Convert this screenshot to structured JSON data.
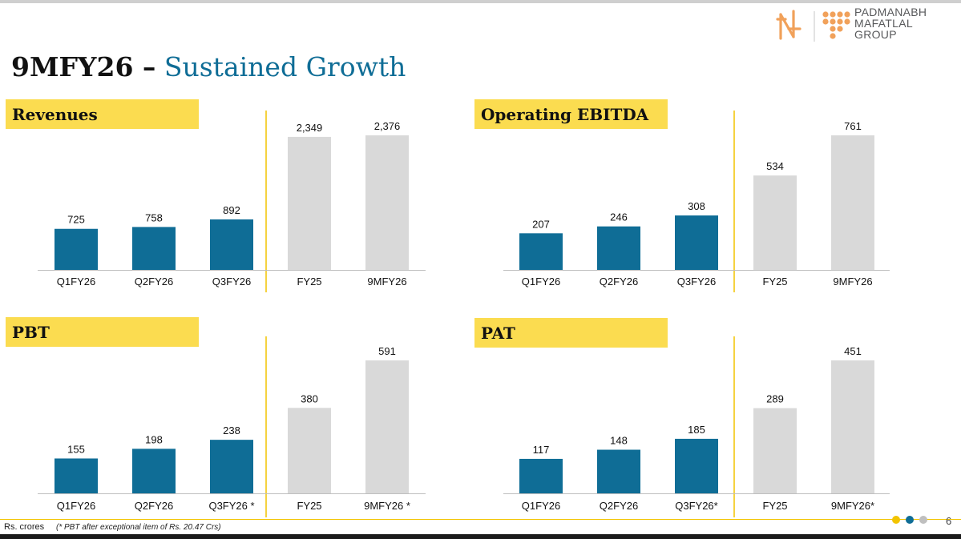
{
  "header": {
    "title_bold": "9MFY26 –",
    "title_rest": "Sustained Growth",
    "brand_lines": [
      "PADMANABH",
      "MAFATLAL",
      "GROUP"
    ]
  },
  "colors": {
    "bar_quarter": "#0f6d96",
    "bar_period": "#d9d9d9",
    "title_highlight": "#fbdc50",
    "divider": "#f2c400",
    "dot_1": "#f2c400",
    "dot_2": "#0f6d96",
    "dot_3": "#bfbfbf"
  },
  "footer": {
    "unit": "Rs. crores",
    "note": "(* PBT after exceptional item of Rs. 20.47 Crs)",
    "page": "6"
  },
  "chart_data": [
    {
      "type": "bar",
      "title": "Revenues",
      "categories": [
        "Q1FY26",
        "Q2FY26",
        "Q3FY26",
        "FY25",
        "9MFY26"
      ],
      "values": [
        725,
        758,
        892,
        2349,
        2376
      ],
      "value_labels": [
        "725",
        "758",
        "892",
        "2,349",
        "2,376"
      ],
      "groups": [
        "quarter",
        "quarter",
        "quarter",
        "period",
        "period"
      ],
      "ylim": [
        0,
        2376
      ]
    },
    {
      "type": "bar",
      "title": "Operating EBITDA",
      "categories": [
        "Q1FY26",
        "Q2FY26",
        "Q3FY26",
        "FY25",
        "9MFY26"
      ],
      "values": [
        207,
        246,
        308,
        534,
        761
      ],
      "value_labels": [
        "207",
        "246",
        "308",
        "534",
        "761"
      ],
      "groups": [
        "quarter",
        "quarter",
        "quarter",
        "period",
        "period"
      ],
      "ylim": [
        0,
        761
      ]
    },
    {
      "type": "bar",
      "title": "PBT",
      "categories": [
        "Q1FY26",
        "Q2FY26",
        "Q3FY26 *",
        "FY25",
        "9MFY26 *"
      ],
      "values": [
        155,
        198,
        238,
        380,
        591
      ],
      "value_labels": [
        "155",
        "198",
        "238",
        "380",
        "591"
      ],
      "groups": [
        "quarter",
        "quarter",
        "quarter",
        "period",
        "period"
      ],
      "ylim": [
        0,
        591
      ]
    },
    {
      "type": "bar",
      "title": "PAT",
      "categories": [
        "Q1FY26",
        "Q2FY26",
        "Q3FY26*",
        "FY25",
        "9MFY26*"
      ],
      "values": [
        117,
        148,
        185,
        289,
        451
      ],
      "value_labels": [
        "117",
        "148",
        "185",
        "289",
        "451"
      ],
      "groups": [
        "quarter",
        "quarter",
        "quarter",
        "period",
        "period"
      ],
      "ylim": [
        0,
        451
      ]
    }
  ]
}
